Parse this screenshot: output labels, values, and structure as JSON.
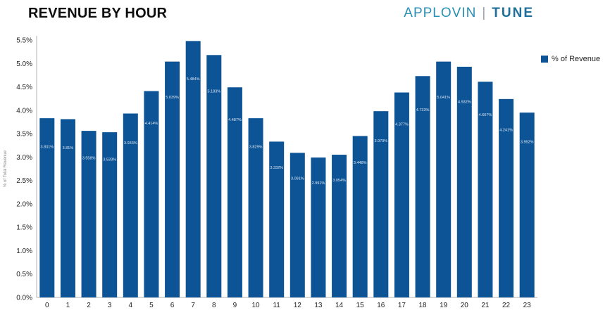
{
  "header": {
    "title": "REVENUE BY HOUR",
    "brand_left": "APPLOVIN",
    "brand_right": "TUNE"
  },
  "chart_data": {
    "type": "bar",
    "title": "REVENUE BY HOUR",
    "xlabel": "",
    "ylabel": "% of Total Revenue",
    "ylim": [
      0,
      5.5
    ],
    "yticks": [
      "0.0%",
      "0.5%",
      "1.0%",
      "1.5%",
      "2.0%",
      "2.5%",
      "3.0%",
      "3.5%",
      "4.0%",
      "4.5%",
      "5.0%",
      "5.5%"
    ],
    "grid": false,
    "legend_position": "right",
    "bar_color": "#0d5496",
    "categories": [
      "0",
      "1",
      "2",
      "3",
      "4",
      "5",
      "6",
      "7",
      "8",
      "9",
      "10",
      "11",
      "12",
      "13",
      "14",
      "15",
      "16",
      "17",
      "18",
      "19",
      "20",
      "21",
      "22",
      "23"
    ],
    "series": [
      {
        "name": "% of Revenue",
        "values": [
          3.83,
          3.81,
          3.56,
          3.53,
          3.93,
          4.41,
          5.04,
          5.48,
          5.18,
          4.49,
          3.83,
          3.33,
          3.09,
          2.99,
          3.05,
          3.45,
          3.98,
          4.38,
          4.73,
          5.04,
          4.93,
          4.61,
          4.24,
          3.95
        ],
        "data_labels": [
          "3.831%",
          "3.81%",
          "3.558%",
          "3.533%",
          "3.933%",
          "4.414%",
          "5.039%",
          "5.484%",
          "5.183%",
          "4.487%",
          "3.829%",
          "3.332%",
          "3.091%",
          "2.991%",
          "3.054%",
          "3.448%",
          "3.979%",
          "4.377%",
          "4.733%",
          "5.041%",
          "4.932%",
          "4.607%",
          "4.241%",
          "3.952%"
        ]
      }
    ]
  }
}
